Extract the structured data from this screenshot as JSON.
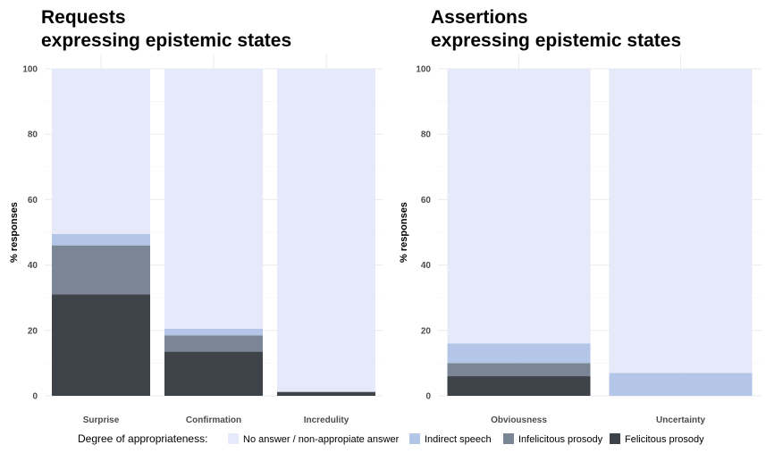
{
  "legend": {
    "title": "Degree of appropriateness:",
    "entries": [
      {
        "label": "No answer / non-appropiate answer",
        "color": "#e6e9fa"
      },
      {
        "label": "Indirect speech",
        "color": "#b4c6e8"
      },
      {
        "label": "Infelicitous prosody",
        "color": "#7a8595"
      },
      {
        "label": "Felicitous prosody",
        "color": "#3e434a"
      }
    ]
  },
  "chart_data": [
    {
      "type": "bar",
      "stacked": true,
      "title_line1": "Requests",
      "title_line2": "expressing epistemic states",
      "ylabel": "% responses",
      "ylim": [
        0,
        100
      ],
      "yticks": [
        0,
        20,
        40,
        60,
        80,
        100
      ],
      "categories": [
        "Surprise",
        "Confirmation",
        "Incredulity"
      ],
      "series": [
        {
          "name": "Felicitous prosody",
          "values": [
            31,
            13.5,
            1.2
          ]
        },
        {
          "name": "Infelicitous prosody",
          "values": [
            15,
            5,
            0
          ]
        },
        {
          "name": "Indirect speech",
          "values": [
            3.5,
            2,
            0
          ]
        },
        {
          "name": "No answer / non-appropiate answer",
          "values": [
            50.5,
            79.5,
            98.8
          ]
        }
      ]
    },
    {
      "type": "bar",
      "stacked": true,
      "title_line1": "Assertions",
      "title_line2": "expressing epistemic states",
      "ylabel": "% responses",
      "ylim": [
        0,
        100
      ],
      "yticks": [
        0,
        20,
        40,
        60,
        80,
        100
      ],
      "categories": [
        "Obviousness",
        "Uncertainty"
      ],
      "series": [
        {
          "name": "Felicitous prosody",
          "values": [
            6,
            0
          ]
        },
        {
          "name": "Infelicitous prosody",
          "values": [
            4,
            0
          ]
        },
        {
          "name": "Indirect speech",
          "values": [
            6,
            7
          ]
        },
        {
          "name": "No answer / non-appropiate answer",
          "values": [
            84,
            93
          ]
        }
      ]
    }
  ]
}
